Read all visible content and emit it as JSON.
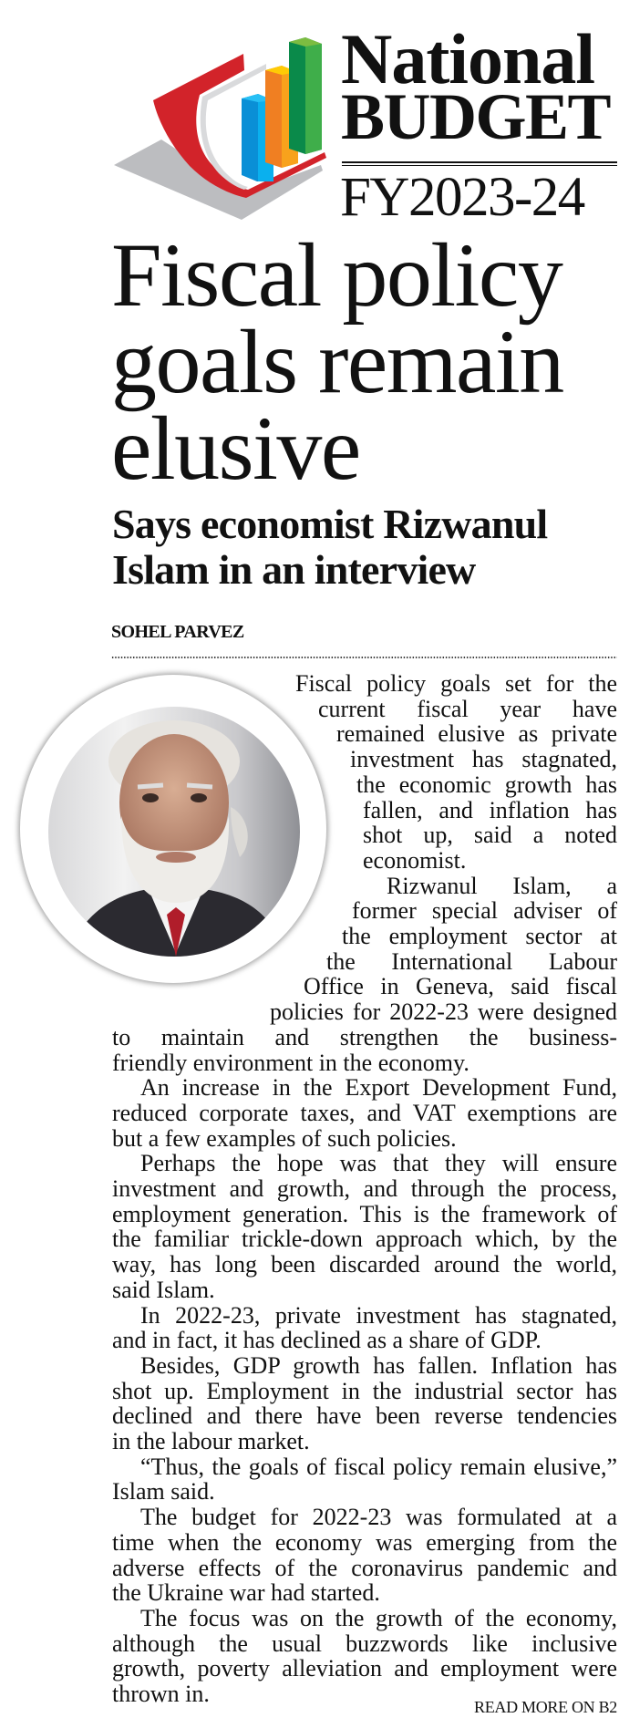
{
  "masthead": {
    "line1": "National",
    "line2": "BUDGET",
    "fiscal_year": "FY2023-24",
    "logo_icon": "book-with-bar-chart-icon",
    "logo_colors": {
      "red": "#d2232a",
      "grey": "#bcbdc0",
      "blue": "#0aa6e8",
      "orange": "#f7941d",
      "green": "#3aaa48"
    }
  },
  "article": {
    "headline": [
      "Fiscal policy",
      "goals remain",
      "elusive"
    ],
    "subheadline": [
      "Says economist Rizwanul",
      "Islam in an interview"
    ],
    "byline": "SOHEL PARVEZ",
    "photo": "portrait-of-rizwanul-islam",
    "paragraphs": [
      [
        "Fiscal policy goals set for the",
        "current fiscal year have",
        "remained elusive as private",
        "investment has stagnated,",
        "the economic growth has",
        "fallen, and inflation has",
        "shot up, said a noted",
        "economist."
      ],
      [
        "Rizwanul Islam, a",
        "former special adviser of",
        "the employment sector at",
        "the International Labour",
        "Office in Geneva, said fiscal",
        "policies for 2022-23 were designed",
        "to maintain and strengthen the business-",
        "friendly environment in the economy."
      ],
      [
        "An increase in the Export Development Fund,",
        "reduced corporate taxes, and VAT exemptions are",
        "but a few examples of such policies."
      ],
      [
        "Perhaps the hope was that they will ensure",
        "investment and growth, and through the process,",
        "employment generation. This is the framework of",
        "the familiar trickle-down approach which, by the",
        "way, has long been discarded around the world,",
        "said Islam."
      ],
      [
        "In 2022-23, private investment has stagnated,",
        "and in fact, it has declined as a share of GDP."
      ],
      [
        "Besides, GDP growth has fallen. Inflation has",
        "shot up. Employment in the industrial sector has",
        "declined and there have been reverse tendencies",
        "in the labour market."
      ],
      [
        "“Thus, the goals of fiscal policy remain elusive,”",
        "Islam said."
      ],
      [
        "The budget for 2022-23 was formulated at a",
        "time when the economy was emerging from the",
        "adverse effects of the coronavirus pandemic and",
        "the Ukraine war had started."
      ],
      [
        "The focus was on the growth of the economy,",
        "although the usual buzzwords like inclusive",
        "growth, poverty alleviation and employment were",
        "thrown in."
      ]
    ],
    "read_more": "READ MORE ON B2"
  }
}
